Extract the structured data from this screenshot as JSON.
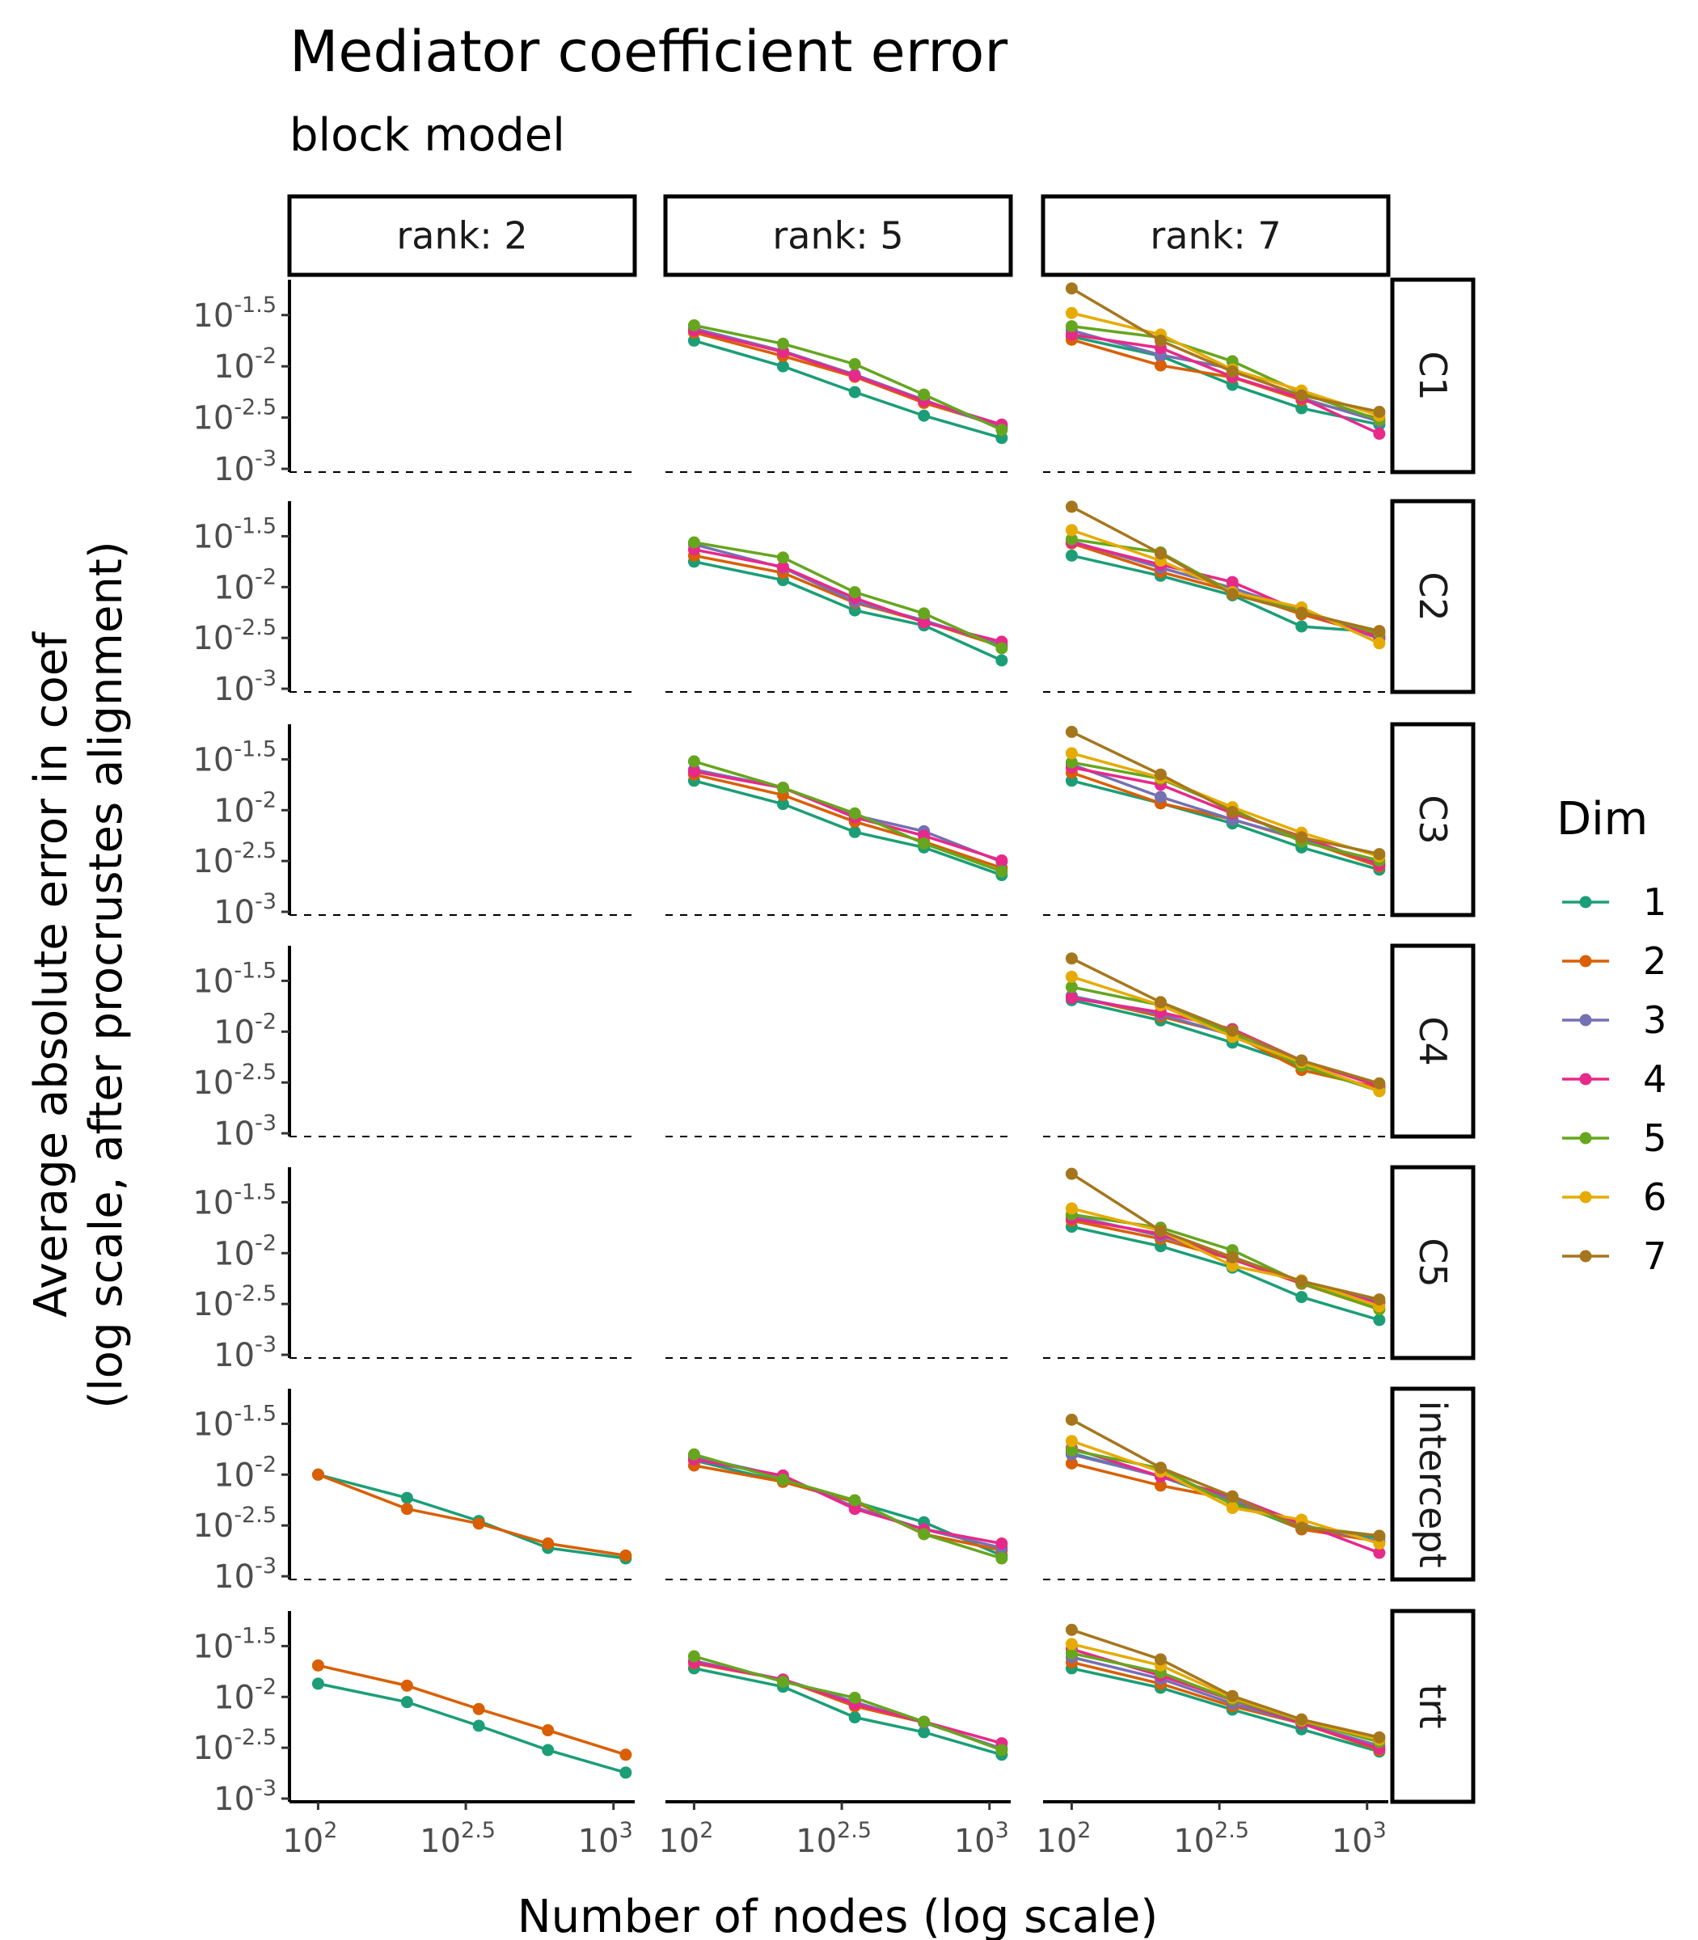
{
  "chart_data": {
    "type": "line",
    "title": "Mediator coefficient error",
    "subtitle": "block model",
    "xlabel": "Number of nodes (log scale)",
    "ylabel_line1": "Average absolute error in coef",
    "ylabel_line2": "(log scale, after procrustes alignment)",
    "x_scale": "log10",
    "y_scale": "log10",
    "x_ticks": [
      {
        "value": 100,
        "base": "10",
        "exp": "2"
      },
      {
        "value": 316.23,
        "base": "10",
        "exp": "2.5"
      },
      {
        "value": 1000,
        "base": "10",
        "exp": "3"
      }
    ],
    "y_ticks": [
      {
        "value": 0.031623,
        "base": "10",
        "exp": "-1.5"
      },
      {
        "value": 0.01,
        "base": "10",
        "exp": "-2"
      },
      {
        "value": 0.0031623,
        "base": "10",
        "exp": "-2.5"
      },
      {
        "value": 0.001,
        "base": "10",
        "exp": "-3"
      }
    ],
    "columns": [
      "rank: 2",
      "rank: 5",
      "rank: 7"
    ],
    "rows": [
      "C1",
      "C2",
      "C3",
      "C4",
      "C5",
      "intercept",
      "trt"
    ],
    "legend": {
      "title": "Dim",
      "position": "right"
    },
    "dims": [
      {
        "name": "1",
        "color": "#1b9e77"
      },
      {
        "name": "2",
        "color": "#d95f02"
      },
      {
        "name": "3",
        "color": "#7570b3"
      },
      {
        "name": "4",
        "color": "#e7298a"
      },
      {
        "name": "5",
        "color": "#66a61e"
      },
      {
        "name": "6",
        "color": "#e6ab02"
      },
      {
        "name": "7",
        "color": "#a6761d"
      }
    ],
    "x": [
      100,
      200,
      350,
      600,
      1100
    ],
    "panels": [
      {
        "row": "C1",
        "col": "rank: 5",
        "series": [
          {
            "dim": "1",
            "values": [
              0.0178,
              0.01,
              0.0056,
              0.0033,
              0.002
            ]
          },
          {
            "dim": "2",
            "values": [
              0.0214,
              0.0126,
              0.0079,
              0.0044,
              0.0026
            ]
          },
          {
            "dim": "3",
            "values": [
              0.0234,
              0.0141,
              0.0083,
              0.0047,
              0.0025
            ]
          },
          {
            "dim": "4",
            "values": [
              0.0224,
              0.0138,
              0.0081,
              0.0046,
              0.0027
            ]
          },
          {
            "dim": "5",
            "values": [
              0.0251,
              0.0166,
              0.0105,
              0.0053,
              0.0024
            ]
          }
        ]
      },
      {
        "row": "C1",
        "col": "rank: 7",
        "series": [
          {
            "dim": "1",
            "values": [
              0.0195,
              0.0126,
              0.0066,
              0.0039,
              0.0027
            ]
          },
          {
            "dim": "2",
            "values": [
              0.0182,
              0.0102,
              0.0078,
              0.0047,
              0.0031
            ]
          },
          {
            "dim": "3",
            "values": [
              0.0224,
              0.0129,
              0.0095,
              0.0049,
              0.0029
            ]
          },
          {
            "dim": "4",
            "values": [
              0.0204,
              0.0151,
              0.0079,
              0.0049,
              0.0022
            ]
          },
          {
            "dim": "5",
            "values": [
              0.0246,
              0.0191,
              0.0112,
              0.0055,
              0.003
            ]
          },
          {
            "dim": "6",
            "values": [
              0.0331,
              0.0204,
              0.0093,
              0.0058,
              0.0033
            ]
          },
          {
            "dim": "7",
            "values": [
              0.0575,
              0.0178,
              0.0089,
              0.0052,
              0.0036
            ]
          }
        ]
      },
      {
        "row": "C2",
        "col": "rank: 5",
        "series": [
          {
            "dim": "1",
            "values": [
              0.0178,
              0.0117,
              0.0059,
              0.0042,
              0.0019
            ]
          },
          {
            "dim": "2",
            "values": [
              0.0204,
              0.0138,
              0.007,
              0.0046,
              0.0026
            ]
          },
          {
            "dim": "3",
            "values": [
              0.0263,
              0.0155,
              0.0072,
              0.0047,
              0.0027
            ]
          },
          {
            "dim": "4",
            "values": [
              0.0234,
              0.0158,
              0.0078,
              0.0045,
              0.0029
            ]
          },
          {
            "dim": "5",
            "values": [
              0.0275,
              0.0195,
              0.0089,
              0.0055,
              0.0025
            ]
          }
        ]
      },
      {
        "row": "C2",
        "col": "rank: 7",
        "series": [
          {
            "dim": "1",
            "values": [
              0.0204,
              0.0129,
              0.0083,
              0.0041,
              0.0036
            ]
          },
          {
            "dim": "2",
            "values": [
              0.0269,
              0.0141,
              0.0091,
              0.0054,
              0.0033
            ]
          },
          {
            "dim": "3",
            "values": [
              0.0282,
              0.0155,
              0.0098,
              0.0058,
              0.0031
            ]
          },
          {
            "dim": "4",
            "values": [
              0.0275,
              0.0166,
              0.0112,
              0.0057,
              0.0032
            ]
          },
          {
            "dim": "5",
            "values": [
              0.0295,
              0.0219,
              0.0089,
              0.0058,
              0.0035
            ]
          },
          {
            "dim": "6",
            "values": [
              0.0363,
              0.0182,
              0.0089,
              0.0063,
              0.0028
            ]
          },
          {
            "dim": "7",
            "values": [
              0.0617,
              0.0214,
              0.0085,
              0.0056,
              0.0037
            ]
          }
        ]
      },
      {
        "row": "C3",
        "col": "rank: 5",
        "series": [
          {
            "dim": "1",
            "values": [
              0.0195,
              0.0115,
              0.0061,
              0.0043,
              0.0023
            ]
          },
          {
            "dim": "2",
            "values": [
              0.0224,
              0.0141,
              0.0077,
              0.0049,
              0.0027
            ]
          },
          {
            "dim": "3",
            "values": [
              0.0251,
              0.0166,
              0.0089,
              0.0062,
              0.0031
            ]
          },
          {
            "dim": "4",
            "values": [
              0.024,
              0.0166,
              0.0085,
              0.0056,
              0.0032
            ]
          },
          {
            "dim": "5",
            "values": [
              0.0302,
              0.0166,
              0.0093,
              0.0047,
              0.0025
            ]
          }
        ]
      },
      {
        "row": "C3",
        "col": "rank: 7",
        "series": [
          {
            "dim": "1",
            "values": [
              0.0195,
              0.0117,
              0.0074,
              0.0043,
              0.0026
            ]
          },
          {
            "dim": "2",
            "values": [
              0.0234,
              0.0117,
              0.0081,
              0.0051,
              0.0028
            ]
          },
          {
            "dim": "3",
            "values": [
              0.0282,
              0.0135,
              0.0081,
              0.0052,
              0.003
            ]
          },
          {
            "dim": "4",
            "values": [
              0.0263,
              0.0178,
              0.0093,
              0.0055,
              0.0029
            ]
          },
          {
            "dim": "5",
            "values": [
              0.0295,
              0.0204,
              0.0102,
              0.0049,
              0.0032
            ]
          },
          {
            "dim": "6",
            "values": [
              0.0363,
              0.0209,
              0.0107,
              0.006,
              0.0035
            ]
          },
          {
            "dim": "7",
            "values": [
              0.0589,
              0.0224,
              0.0096,
              0.0054,
              0.0037
            ]
          }
        ]
      },
      {
        "row": "C4",
        "col": "rank: 7",
        "series": [
          {
            "dim": "1",
            "values": [
              0.0204,
              0.0129,
              0.0078,
              0.0046,
              0.0027
            ]
          },
          {
            "dim": "2",
            "values": [
              0.0224,
              0.0141,
              0.0094,
              0.0042,
              0.0028
            ]
          },
          {
            "dim": "3",
            "values": [
              0.0224,
              0.0148,
              0.0092,
              0.0052,
              0.003
            ]
          },
          {
            "dim": "4",
            "values": [
              0.0214,
              0.0155,
              0.0106,
              0.0052,
              0.0029
            ]
          },
          {
            "dim": "5",
            "values": [
              0.0275,
              0.0182,
              0.0096,
              0.0046,
              0.0026
            ]
          },
          {
            "dim": "6",
            "values": [
              0.0347,
              0.0182,
              0.0089,
              0.005,
              0.0026
            ]
          },
          {
            "dim": "7",
            "values": [
              0.0525,
              0.0195,
              0.0102,
              0.0052,
              0.0031
            ]
          }
        ]
      },
      {
        "row": "C5",
        "col": "rank: 7",
        "series": [
          {
            "dim": "1",
            "values": [
              0.0182,
              0.0117,
              0.0072,
              0.0037,
              0.0022
            ]
          },
          {
            "dim": "2",
            "values": [
              0.0209,
              0.0138,
              0.0087,
              0.005,
              0.0028
            ]
          },
          {
            "dim": "3",
            "values": [
              0.0234,
              0.0148,
              0.0092,
              0.0052,
              0.0033
            ]
          },
          {
            "dim": "4",
            "values": [
              0.0219,
              0.0155,
              0.0087,
              0.0051,
              0.0032
            ]
          },
          {
            "dim": "5",
            "values": [
              0.024,
              0.0178,
              0.0107,
              0.0051,
              0.0028
            ]
          },
          {
            "dim": "6",
            "values": [
              0.0275,
              0.0166,
              0.0075,
              0.0054,
              0.003
            ]
          },
          {
            "dim": "7",
            "values": [
              0.0603,
              0.0166,
              0.0091,
              0.0053,
              0.0035
            ]
          }
        ]
      },
      {
        "row": "intercept",
        "col": "rank: 2",
        "series": [
          {
            "dim": "1",
            "values": [
              0.01,
              0.0059,
              0.0035,
              0.0019,
              0.0015
            ]
          },
          {
            "dim": "2",
            "values": [
              0.01,
              0.0046,
              0.0033,
              0.0021,
              0.0016
            ]
          }
        ]
      },
      {
        "row": "intercept",
        "col": "rank: 5",
        "series": [
          {
            "dim": "1",
            "values": [
              0.0138,
              0.0085,
              0.0054,
              0.0034,
              0.0016
            ]
          },
          {
            "dim": "2",
            "values": [
              0.0123,
              0.0085,
              0.0054,
              0.0026,
              0.0018
            ]
          },
          {
            "dim": "3",
            "values": [
              0.0151,
              0.0096,
              0.0048,
              0.0029,
              0.0019
            ]
          },
          {
            "dim": "4",
            "values": [
              0.0141,
              0.0098,
              0.0046,
              0.0029,
              0.0021
            ]
          },
          {
            "dim": "5",
            "values": [
              0.0158,
              0.0089,
              0.0056,
              0.0026,
              0.0015
            ]
          }
        ]
      },
      {
        "row": "intercept",
        "col": "rank: 7",
        "series": [
          {
            "dim": "1",
            "values": [
              0.0162,
              0.0096,
              0.0054,
              0.0029,
              0.0024
            ]
          },
          {
            "dim": "2",
            "values": [
              0.0129,
              0.0078,
              0.0057,
              0.0029,
              0.0022
            ]
          },
          {
            "dim": "3",
            "values": [
              0.0158,
              0.0096,
              0.0057,
              0.0032,
              0.0022
            ]
          },
          {
            "dim": "4",
            "values": [
              0.0182,
              0.0096,
              0.0061,
              0.0033,
              0.0017
            ]
          },
          {
            "dim": "5",
            "values": [
              0.0174,
              0.0115,
              0.0051,
              0.0031,
              0.0025
            ]
          },
          {
            "dim": "6",
            "values": [
              0.0214,
              0.0107,
              0.0047,
              0.0036,
              0.0021
            ]
          },
          {
            "dim": "7",
            "values": [
              0.0347,
              0.0117,
              0.0061,
              0.003,
              0.0025
            ]
          }
        ]
      },
      {
        "row": "trt",
        "col": "rank: 2",
        "series": [
          {
            "dim": "1",
            "values": [
              0.0135,
              0.0089,
              0.0052,
              0.003,
              0.0018
            ]
          },
          {
            "dim": "2",
            "values": [
              0.0204,
              0.0129,
              0.0076,
              0.0047,
              0.0027
            ]
          }
        ]
      },
      {
        "row": "trt",
        "col": "rank: 5",
        "series": [
          {
            "dim": "1",
            "values": [
              0.0191,
              0.0126,
              0.0063,
              0.0045,
              0.0027
            ]
          },
          {
            "dim": "2",
            "values": [
              0.0214,
              0.0148,
              0.0081,
              0.0056,
              0.0031
            ]
          },
          {
            "dim": "3",
            "values": [
              0.0226,
              0.0148,
              0.0089,
              0.0056,
              0.0031
            ]
          },
          {
            "dim": "4",
            "values": [
              0.0219,
              0.0148,
              0.0085,
              0.0057,
              0.0035
            ]
          },
          {
            "dim": "5",
            "values": [
              0.0251,
              0.0141,
              0.0098,
              0.0057,
              0.003
            ]
          }
        ]
      },
      {
        "row": "trt",
        "col": "rank: 7",
        "series": [
          {
            "dim": "1",
            "values": [
              0.0191,
              0.0123,
              0.0075,
              0.0048,
              0.0029
            ]
          },
          {
            "dim": "2",
            "values": [
              0.0219,
              0.0135,
              0.0081,
              0.0055,
              0.003
            ]
          },
          {
            "dim": "3",
            "values": [
              0.0246,
              0.0151,
              0.0086,
              0.0055,
              0.0033
            ]
          },
          {
            "dim": "4",
            "values": [
              0.0295,
              0.0162,
              0.0093,
              0.0055,
              0.0031
            ]
          },
          {
            "dim": "5",
            "values": [
              0.0269,
              0.0174,
              0.0094,
              0.0058,
              0.0036
            ]
          },
          {
            "dim": "6",
            "values": [
              0.0331,
              0.0204,
              0.0098,
              0.0059,
              0.0038
            ]
          },
          {
            "dim": "7",
            "values": [
              0.0457,
              0.0234,
              0.0102,
              0.006,
              0.004
            ]
          }
        ]
      }
    ]
  }
}
